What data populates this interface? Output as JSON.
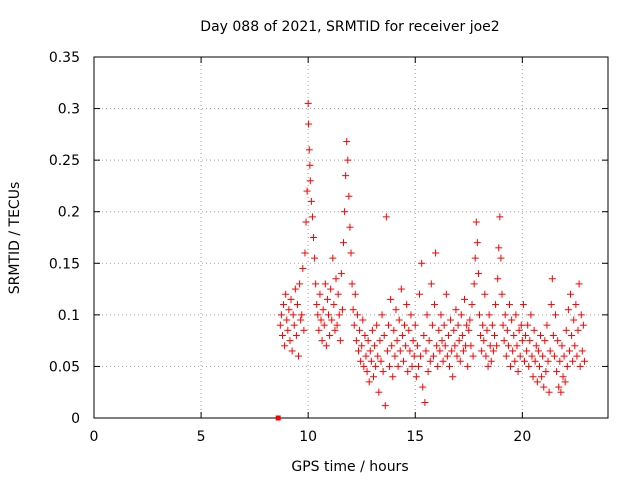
{
  "chart_data": {
    "type": "scatter",
    "title": "Day 088 of 2021, SRMTID for receiver joe2",
    "xlabel": "GPS time / hours",
    "ylabel": "SRMTID / TECUs",
    "xlim": [
      0,
      24
    ],
    "ylim": [
      0,
      0.35
    ],
    "xticks": [
      0,
      5,
      10,
      15,
      20
    ],
    "xtick_labels": [
      "0",
      "5",
      "10",
      "15",
      "20"
    ],
    "yticks": [
      0,
      0.05,
      0.1,
      0.15,
      0.2,
      0.25,
      0.3,
      0.35
    ],
    "ytick_labels": [
      "0",
      "0.05",
      "0.1",
      "0.15",
      "0.2",
      "0.25",
      "0.3",
      "0.35"
    ],
    "grid": true,
    "marker": "plus",
    "marker_color": "#ff0000",
    "outlier_square": {
      "x": 8.6,
      "y": 0.0
    },
    "series": [
      {
        "name": "SRMTID",
        "points": [
          [
            8.7,
            0.09
          ],
          [
            8.75,
            0.1
          ],
          [
            8.8,
            0.08
          ],
          [
            8.85,
            0.11
          ],
          [
            8.9,
            0.07
          ],
          [
            8.95,
            0.12
          ],
          [
            9.0,
            0.095
          ],
          [
            9.05,
            0.085
          ],
          [
            9.1,
            0.105
          ],
          [
            9.15,
            0.075
          ],
          [
            9.2,
            0.115
          ],
          [
            9.25,
            0.065
          ],
          [
            9.3,
            0.1
          ],
          [
            9.35,
            0.09
          ],
          [
            9.4,
            0.125
          ],
          [
            9.45,
            0.08
          ],
          [
            9.5,
            0.11
          ],
          [
            9.55,
            0.06
          ],
          [
            9.6,
            0.13
          ],
          [
            9.65,
            0.095
          ],
          [
            9.7,
            0.1
          ],
          [
            9.75,
            0.145
          ],
          [
            9.8,
            0.085
          ],
          [
            9.85,
            0.16
          ],
          [
            9.9,
            0.19
          ],
          [
            9.95,
            0.22
          ],
          [
            10.0,
            0.305
          ],
          [
            10.02,
            0.285
          ],
          [
            10.05,
            0.26
          ],
          [
            10.08,
            0.245
          ],
          [
            10.1,
            0.23
          ],
          [
            10.15,
            0.21
          ],
          [
            10.2,
            0.195
          ],
          [
            10.25,
            0.175
          ],
          [
            10.3,
            0.155
          ],
          [
            10.35,
            0.13
          ],
          [
            10.4,
            0.11
          ],
          [
            10.45,
            0.1
          ],
          [
            10.5,
            0.085
          ],
          [
            10.55,
            0.12
          ],
          [
            10.6,
            0.095
          ],
          [
            10.65,
            0.075
          ],
          [
            10.7,
            0.105
          ],
          [
            10.75,
            0.09
          ],
          [
            10.8,
            0.13
          ],
          [
            10.85,
            0.07
          ],
          [
            10.9,
            0.115
          ],
          [
            10.95,
            0.1
          ],
          [
            11.0,
            0.08
          ],
          [
            11.05,
            0.125
          ],
          [
            11.1,
            0.095
          ],
          [
            11.15,
            0.155
          ],
          [
            11.2,
            0.11
          ],
          [
            11.25,
            0.085
          ],
          [
            11.3,
            0.135
          ],
          [
            11.35,
            0.09
          ],
          [
            11.4,
            0.12
          ],
          [
            11.45,
            0.1
          ],
          [
            11.5,
            0.075
          ],
          [
            11.55,
            0.14
          ],
          [
            11.6,
            0.105
          ],
          [
            11.65,
            0.17
          ],
          [
            11.7,
            0.2
          ],
          [
            11.75,
            0.235
          ],
          [
            11.8,
            0.268
          ],
          [
            11.85,
            0.25
          ],
          [
            11.9,
            0.215
          ],
          [
            11.95,
            0.185
          ],
          [
            12.0,
            0.16
          ],
          [
            12.05,
            0.13
          ],
          [
            12.1,
            0.105
          ],
          [
            12.15,
            0.09
          ],
          [
            12.2,
            0.12
          ],
          [
            12.25,
            0.075
          ],
          [
            12.3,
            0.1
          ],
          [
            12.35,
            0.065
          ],
          [
            12.4,
            0.085
          ],
          [
            12.45,
            0.055
          ],
          [
            12.5,
            0.07
          ],
          [
            12.55,
            0.095
          ],
          [
            12.6,
            0.05
          ],
          [
            12.65,
            0.08
          ],
          [
            12.7,
            0.06
          ],
          [
            12.75,
            0.045
          ],
          [
            12.8,
            0.075
          ],
          [
            12.85,
            0.035
          ],
          [
            12.9,
            0.065
          ],
          [
            12.95,
            0.055
          ],
          [
            13.0,
            0.085
          ],
          [
            13.05,
            0.04
          ],
          [
            13.1,
            0.07
          ],
          [
            13.15,
            0.05
          ],
          [
            13.2,
            0.09
          ],
          [
            13.25,
            0.06
          ],
          [
            13.3,
            0.025
          ],
          [
            13.35,
            0.075
          ],
          [
            13.4,
            0.055
          ],
          [
            13.45,
            0.1
          ],
          [
            13.5,
            0.045
          ],
          [
            13.55,
            0.08
          ],
          [
            13.6,
            0.012
          ],
          [
            13.65,
            0.195
          ],
          [
            13.7,
            0.065
          ],
          [
            13.75,
            0.09
          ],
          [
            13.8,
            0.05
          ],
          [
            13.85,
            0.115
          ],
          [
            13.9,
            0.07
          ],
          [
            13.95,
            0.04
          ],
          [
            14.0,
            0.085
          ],
          [
            14.05,
            0.06
          ],
          [
            14.1,
            0.105
          ],
          [
            14.15,
            0.075
          ],
          [
            14.2,
            0.05
          ],
          [
            14.25,
            0.095
          ],
          [
            14.3,
            0.065
          ],
          [
            14.35,
            0.125
          ],
          [
            14.4,
            0.08
          ],
          [
            14.45,
            0.055
          ],
          [
            14.5,
            0.09
          ],
          [
            14.55,
            0.07
          ],
          [
            14.6,
            0.11
          ],
          [
            14.65,
            0.045
          ],
          [
            14.7,
            0.085
          ],
          [
            14.75,
            0.065
          ],
          [
            14.8,
            0.1
          ],
          [
            14.85,
            0.05
          ],
          [
            14.9,
            0.075
          ],
          [
            14.95,
            0.06
          ],
          [
            15.0,
            0.09
          ],
          [
            15.05,
            0.04
          ],
          [
            15.1,
            0.07
          ],
          [
            15.15,
            0.05
          ],
          [
            15.2,
            0.12
          ],
          [
            15.25,
            0.06
          ],
          [
            15.3,
            0.15
          ],
          [
            15.35,
            0.03
          ],
          [
            15.4,
            0.08
          ],
          [
            15.45,
            0.015
          ],
          [
            15.5,
            0.065
          ],
          [
            15.55,
            0.1
          ],
          [
            15.6,
            0.045
          ],
          [
            15.65,
            0.075
          ],
          [
            15.7,
            0.055
          ],
          [
            15.75,
            0.13
          ],
          [
            15.8,
            0.09
          ],
          [
            15.85,
            0.06
          ],
          [
            15.9,
            0.11
          ],
          [
            15.95,
            0.16
          ],
          [
            16.0,
            0.07
          ],
          [
            16.05,
            0.05
          ],
          [
            16.1,
            0.085
          ],
          [
            16.15,
            0.065
          ],
          [
            16.2,
            0.1
          ],
          [
            16.25,
            0.075
          ],
          [
            16.3,
            0.055
          ],
          [
            16.35,
            0.09
          ],
          [
            16.4,
            0.07
          ],
          [
            16.45,
            0.12
          ],
          [
            16.5,
            0.06
          ],
          [
            16.55,
            0.08
          ],
          [
            16.6,
            0.05
          ],
          [
            16.65,
            0.095
          ],
          [
            16.7,
            0.065
          ],
          [
            16.75,
            0.04
          ],
          [
            16.8,
            0.085
          ],
          [
            16.85,
            0.07
          ],
          [
            16.9,
            0.105
          ],
          [
            16.95,
            0.06
          ],
          [
            17.0,
            0.09
          ],
          [
            17.05,
            0.075
          ],
          [
            17.1,
            0.055
          ],
          [
            17.15,
            0.1
          ],
          [
            17.2,
            0.08
          ],
          [
            17.25,
            0.065
          ],
          [
            17.3,
            0.115
          ],
          [
            17.35,
            0.07
          ],
          [
            17.4,
            0.09
          ],
          [
            17.45,
            0.05
          ],
          [
            17.5,
            0.085
          ],
          [
            17.55,
            0.095
          ],
          [
            17.6,
            0.07
          ],
          [
            17.65,
            0.11
          ],
          [
            17.7,
            0.06
          ],
          [
            17.75,
            0.13
          ],
          [
            17.8,
            0.155
          ],
          [
            17.85,
            0.19
          ],
          [
            17.9,
            0.17
          ],
          [
            17.95,
            0.14
          ],
          [
            18.0,
            0.1
          ],
          [
            18.05,
            0.08
          ],
          [
            18.1,
            0.065
          ],
          [
            18.15,
            0.09
          ],
          [
            18.2,
            0.075
          ],
          [
            18.25,
            0.12
          ],
          [
            18.3,
            0.06
          ],
          [
            18.35,
            0.085
          ],
          [
            18.4,
            0.05
          ],
          [
            18.45,
            0.1
          ],
          [
            18.5,
            0.07
          ],
          [
            18.55,
            0.055
          ],
          [
            18.6,
            0.09
          ],
          [
            18.65,
            0.065
          ],
          [
            18.7,
            0.08
          ],
          [
            18.75,
            0.11
          ],
          [
            18.8,
            0.07
          ],
          [
            18.85,
            0.135
          ],
          [
            18.9,
            0.165
          ],
          [
            18.95,
            0.195
          ],
          [
            19.0,
            0.155
          ],
          [
            19.05,
            0.12
          ],
          [
            19.1,
            0.09
          ],
          [
            19.15,
            0.075
          ],
          [
            19.2,
            0.1
          ],
          [
            19.25,
            0.06
          ],
          [
            19.3,
            0.085
          ],
          [
            19.35,
            0.07
          ],
          [
            19.4,
            0.11
          ],
          [
            19.45,
            0.05
          ],
          [
            19.5,
            0.095
          ],
          [
            19.55,
            0.065
          ],
          [
            19.6,
            0.08
          ],
          [
            19.65,
            0.055
          ],
          [
            19.7,
            0.1
          ],
          [
            19.75,
            0.07
          ],
          [
            19.8,
            0.045
          ],
          [
            19.85,
            0.085
          ],
          [
            19.9,
            0.06
          ],
          [
            19.95,
            0.09
          ],
          [
            20.0,
            0.075
          ],
          [
            20.05,
            0.11
          ],
          [
            20.1,
            0.055
          ],
          [
            20.15,
            0.08
          ],
          [
            20.2,
            0.065
          ],
          [
            20.25,
            0.09
          ],
          [
            20.3,
            0.05
          ],
          [
            20.35,
            0.075
          ],
          [
            20.4,
            0.1
          ],
          [
            20.45,
            0.06
          ],
          [
            20.5,
            0.04
          ],
          [
            20.55,
            0.085
          ],
          [
            20.6,
            0.055
          ],
          [
            20.65,
            0.07
          ],
          [
            20.7,
            0.035
          ],
          [
            20.75,
            0.065
          ],
          [
            20.8,
            0.05
          ],
          [
            20.85,
            0.08
          ],
          [
            20.9,
            0.04
          ],
          [
            20.95,
            0.06
          ],
          [
            21.0,
            0.03
          ],
          [
            21.05,
            0.075
          ],
          [
            21.1,
            0.045
          ],
          [
            21.15,
            0.09
          ],
          [
            21.2,
            0.055
          ],
          [
            21.25,
            0.025
          ],
          [
            21.3,
            0.065
          ],
          [
            21.35,
            0.11
          ],
          [
            21.4,
            0.135
          ],
          [
            21.45,
            0.08
          ],
          [
            21.5,
            0.06
          ],
          [
            21.55,
            0.1
          ],
          [
            21.6,
            0.045
          ],
          [
            21.65,
            0.075
          ],
          [
            21.7,
            0.03
          ],
          [
            21.75,
            0.055
          ],
          [
            21.8,
            0.025
          ],
          [
            21.85,
            0.07
          ],
          [
            21.9,
            0.04
          ],
          [
            21.95,
            0.06
          ],
          [
            22.0,
            0.035
          ],
          [
            22.05,
            0.085
          ],
          [
            22.1,
            0.05
          ],
          [
            22.15,
            0.105
          ],
          [
            22.2,
            0.065
          ],
          [
            22.25,
            0.12
          ],
          [
            22.3,
            0.08
          ],
          [
            22.35,
            0.055
          ],
          [
            22.4,
            0.095
          ],
          [
            22.45,
            0.07
          ],
          [
            22.5,
            0.11
          ],
          [
            22.55,
            0.06
          ],
          [
            22.6,
            0.085
          ],
          [
            22.65,
            0.13
          ],
          [
            22.7,
            0.05
          ],
          [
            22.75,
            0.1
          ],
          [
            22.8,
            0.065
          ],
          [
            22.85,
            0.09
          ],
          [
            22.9,
            0.055
          ]
        ]
      }
    ]
  }
}
